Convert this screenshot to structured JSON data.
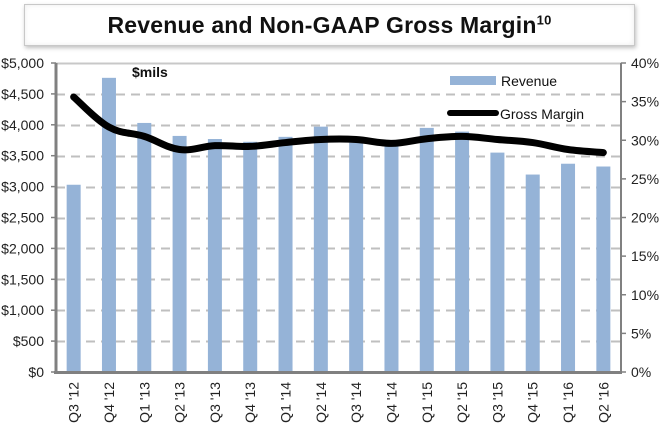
{
  "title": {
    "text": "Revenue and Non-GAAP Gross Margin",
    "superscript": "10"
  },
  "chart_data": {
    "type": "bar",
    "title": "Revenue and Non-GAAP Gross Margin",
    "unit_label": "$mils",
    "categories": [
      "Q3 '12",
      "Q4 '12",
      "Q1 '13",
      "Q2 '13",
      "Q3 '13",
      "Q4 '13",
      "Q1 '14",
      "Q2 '14",
      "Q3 '14",
      "Q4 '14",
      "Q1 '15",
      "Q2 '15",
      "Q3 '15",
      "Q4 '15",
      "Q1 '16",
      "Q2 '16"
    ],
    "series": [
      {
        "name": "Revenue",
        "type": "bar",
        "axis": "left",
        "color": "#95b3d7",
        "values": [
          3030,
          4760,
          4030,
          3820,
          3770,
          3725,
          3805,
          3970,
          3710,
          3660,
          3950,
          3890,
          3550,
          3195,
          3370,
          3325
        ]
      },
      {
        "name": "Gross Margin",
        "type": "line",
        "axis": "right",
        "color": "#000000",
        "values": [
          35.6,
          31.7,
          30.5,
          28.8,
          29.3,
          29.2,
          29.7,
          30.1,
          30.1,
          29.6,
          30.2,
          30.5,
          30.1,
          29.7,
          28.8,
          28.4
        ]
      }
    ],
    "y_left": {
      "label": "",
      "range": [
        0,
        5000
      ],
      "ticks": [
        0,
        500,
        1000,
        1500,
        2000,
        2500,
        3000,
        3500,
        4000,
        4500,
        5000
      ],
      "tick_labels": [
        "$0",
        "$500",
        "$1,000",
        "$1,500",
        "$2,000",
        "$2,500",
        "$3,000",
        "$3,500",
        "$4,000",
        "$4,500",
        "$5,000"
      ]
    },
    "y_right": {
      "label": "",
      "range": [
        0,
        40
      ],
      "ticks": [
        0,
        5,
        10,
        15,
        20,
        25,
        30,
        35,
        40
      ],
      "tick_labels": [
        "0%",
        "5%",
        "10%",
        "15%",
        "20%",
        "25%",
        "30%",
        "35%",
        "40%"
      ]
    },
    "xlabel": "",
    "grid": true,
    "grid_style": "dashed horizontal",
    "legend": {
      "position": "top-right",
      "entries": [
        "Revenue",
        "Gross Margin"
      ]
    },
    "colors": {
      "bar": "#95b3d7",
      "line": "#000000",
      "grid": "#bfbfbf",
      "axis": "#808080"
    }
  }
}
